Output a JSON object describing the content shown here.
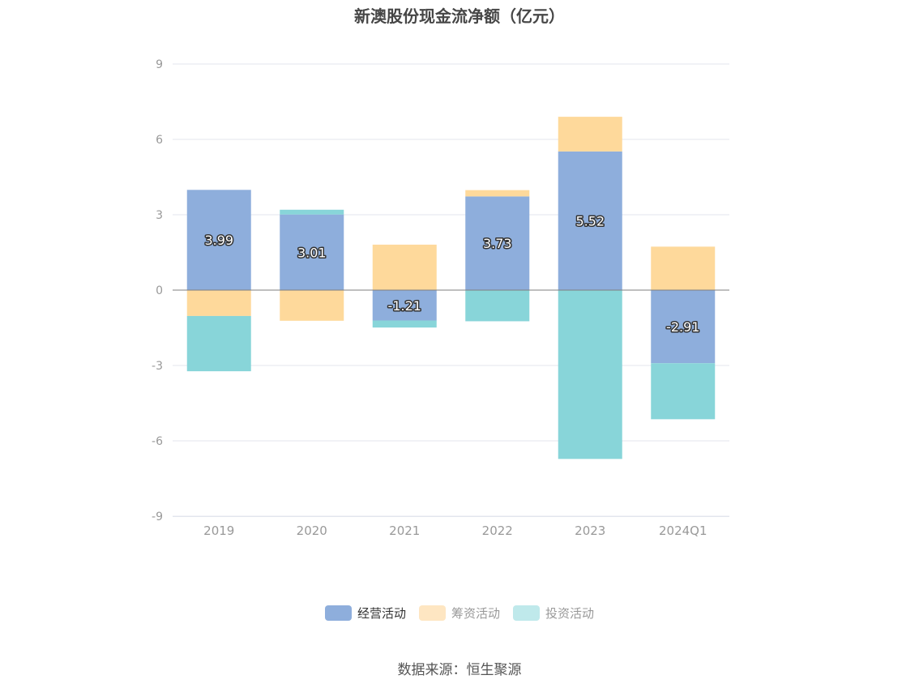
{
  "chart_data": {
    "type": "bar",
    "stacked": true,
    "title": "新澳股份现金流净额（亿元）",
    "categories": [
      "2019",
      "2020",
      "2021",
      "2022",
      "2023",
      "2024Q1"
    ],
    "series": [
      {
        "name": "经营活动",
        "color": "#8eaedc",
        "values": [
          3.99,
          3.01,
          -1.21,
          3.73,
          5.52,
          -2.91
        ],
        "labels": [
          "3.99",
          "3.01",
          "-1.21",
          "3.73",
          "5.52",
          "-2.91"
        ]
      },
      {
        "name": "筹资活动",
        "color": "#fed99b",
        "values": [
          -1.03,
          -1.22,
          1.81,
          0.25,
          1.38,
          1.73
        ]
      },
      {
        "name": "投资活动",
        "color": "#88d5d9",
        "values": [
          -2.2,
          0.19,
          -0.28,
          -1.24,
          -6.72,
          -2.23
        ]
      }
    ],
    "ylim": [
      -9,
      9
    ],
    "yticks": [
      9,
      6,
      3,
      0,
      -3,
      -6,
      -9
    ],
    "grid": true,
    "legend": "bottom"
  },
  "legend_colors": [
    "#8eaedc",
    "#fee6c2",
    "#bfe9eb"
  ],
  "source": "数据来源：恒生聚源"
}
